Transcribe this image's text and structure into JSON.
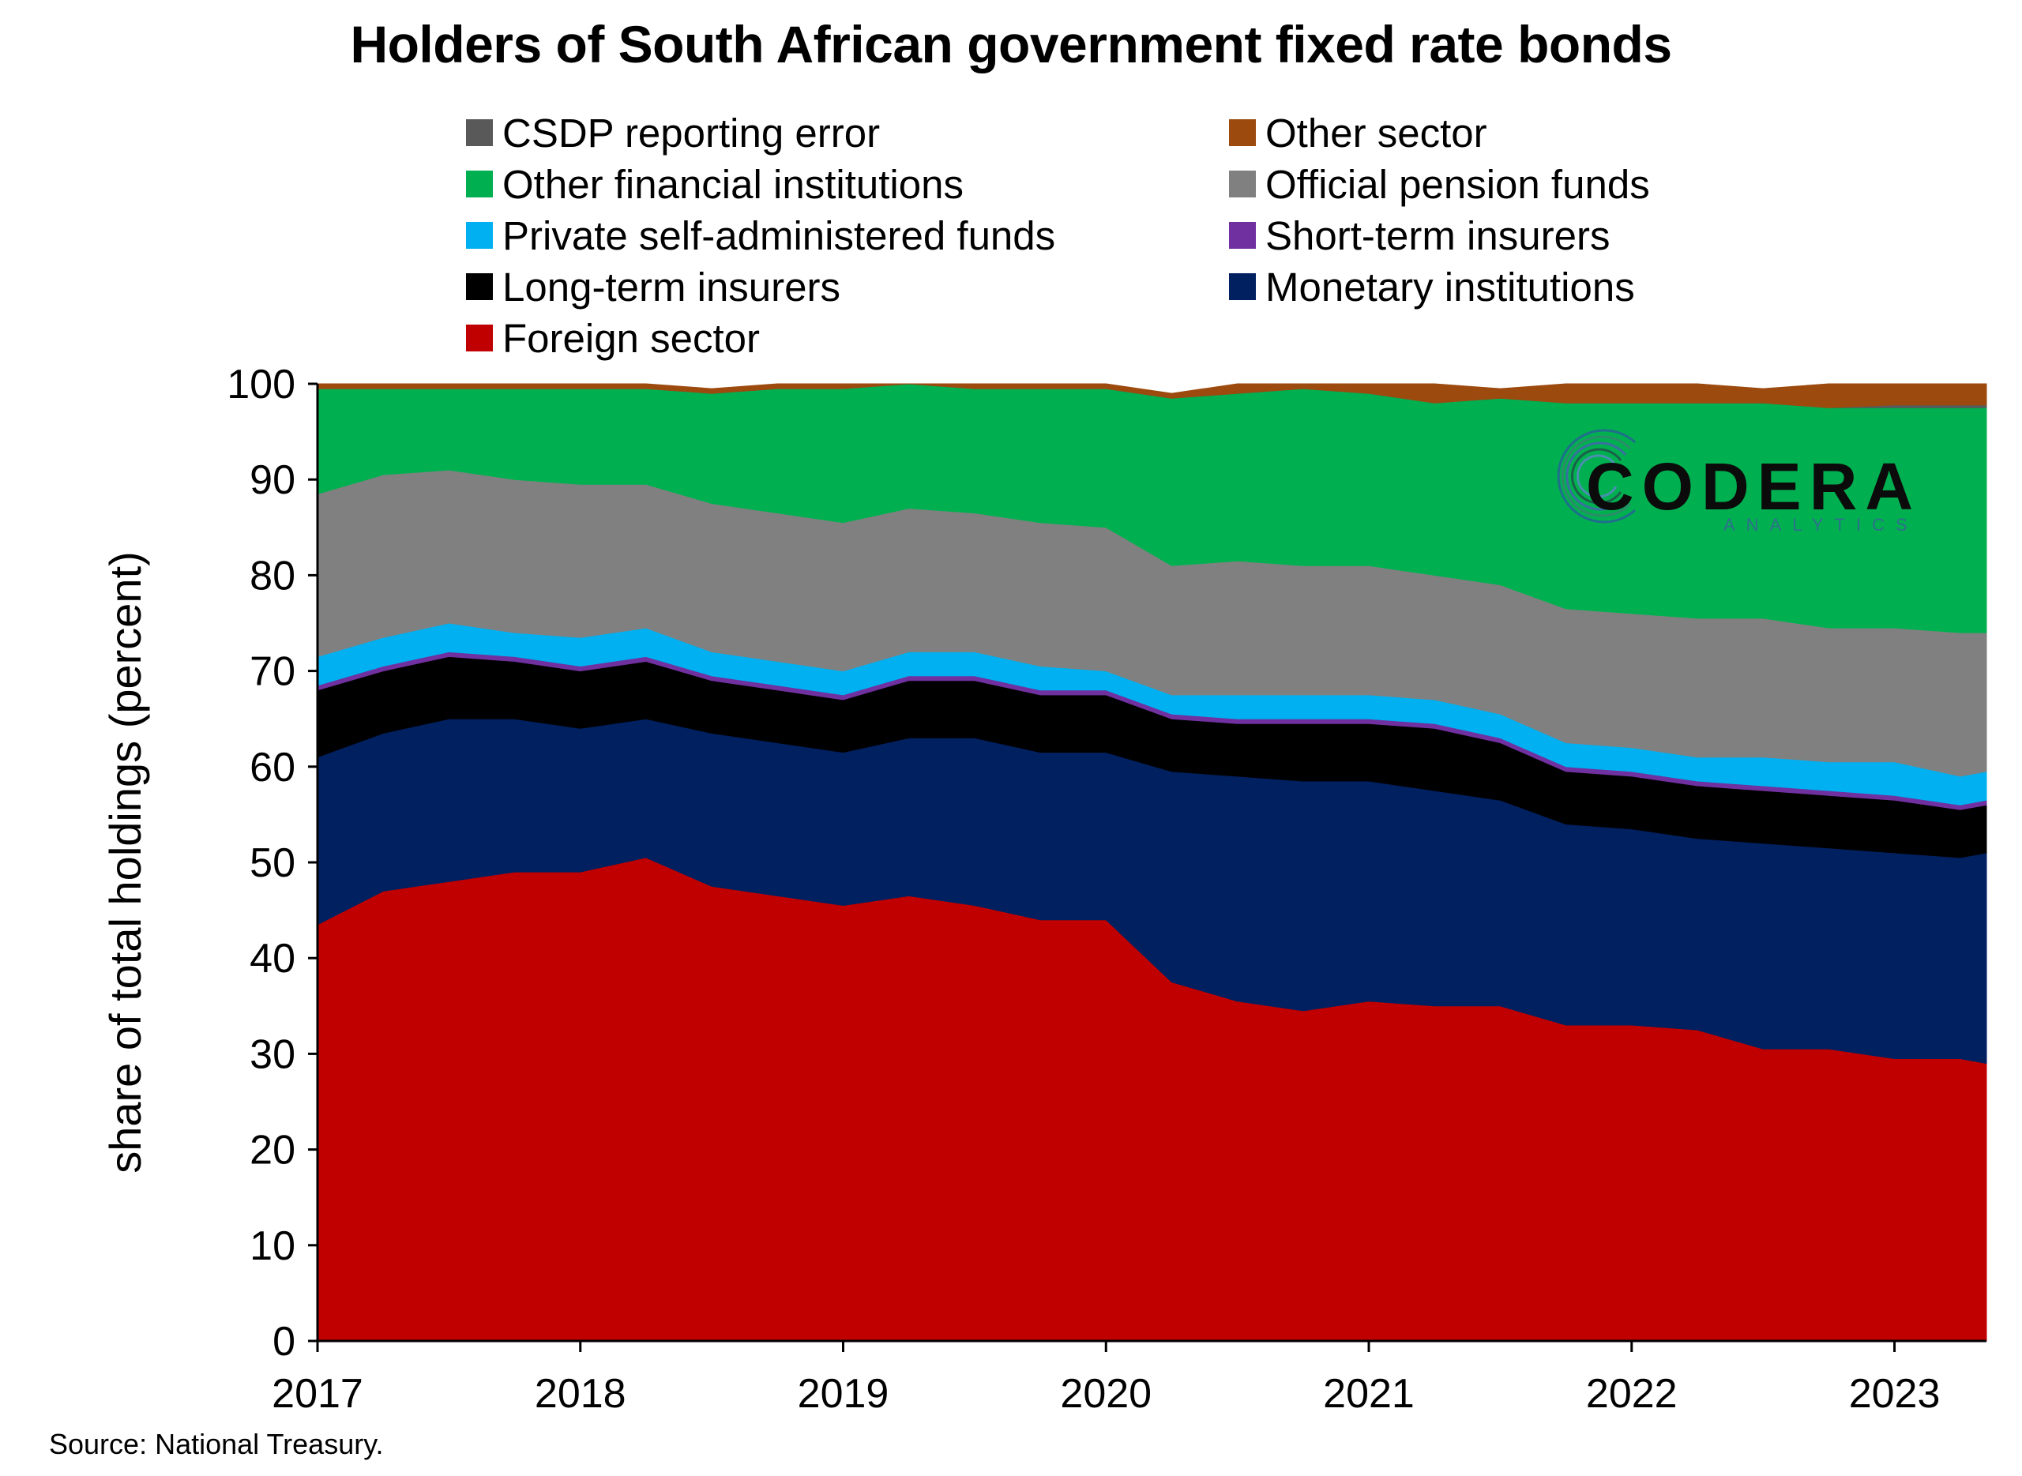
{
  "chart_data": {
    "type": "area",
    "stacked": true,
    "title": "Holders of South African government fixed rate bonds",
    "ylabel": "share of total holdings (percent)",
    "xlabel": "",
    "ylim": [
      0,
      100
    ],
    "yticks": [
      0,
      10,
      20,
      30,
      40,
      50,
      60,
      70,
      80,
      90,
      100
    ],
    "xticks": [
      "2017",
      "2018",
      "2019",
      "2020",
      "2021",
      "2022",
      "2023"
    ],
    "xlim": [
      2017.0,
      2023.35
    ],
    "grid": false,
    "legend_position": "top",
    "source": "Source: National Treasury.",
    "watermark": {
      "text": "CODERA",
      "subtext": "ANALYTICS"
    },
    "x": [
      2017.0,
      2017.25,
      2017.5,
      2017.75,
      2018.0,
      2018.25,
      2018.5,
      2018.75,
      2019.0,
      2019.25,
      2019.5,
      2019.75,
      2020.0,
      2020.25,
      2020.5,
      2020.75,
      2021.0,
      2021.25,
      2021.5,
      2021.75,
      2022.0,
      2022.25,
      2022.5,
      2022.75,
      2023.0,
      2023.25,
      2023.35
    ],
    "series": [
      {
        "name": "Foreign sector",
        "color": "#C00000",
        "values": [
          43.5,
          47,
          48,
          49,
          49,
          50.5,
          47.5,
          46.5,
          45.5,
          46.5,
          45.5,
          44,
          44,
          37.5,
          35.5,
          34.5,
          35.5,
          35,
          35,
          33,
          33,
          32.5,
          30.5,
          30.5,
          29.5,
          29.5,
          29
        ]
      },
      {
        "name": "Monetary institutions",
        "color": "#002060",
        "values": [
          17.5,
          16.5,
          17,
          16,
          15,
          14.5,
          16,
          16,
          16,
          16.5,
          17.5,
          17.5,
          17.5,
          22,
          23.5,
          24,
          23,
          22.5,
          21.5,
          21,
          20.5,
          20,
          21.5,
          21,
          21.5,
          21,
          22
        ]
      },
      {
        "name": "Long-term insurers",
        "color": "#000000",
        "values": [
          7,
          6.5,
          6.5,
          6,
          6,
          6,
          5.5,
          5.5,
          5.5,
          6,
          6,
          6,
          6,
          5.5,
          5.5,
          6,
          6,
          6.5,
          6,
          5.5,
          5.5,
          5.5,
          5.5,
          5.5,
          5.5,
          5,
          5
        ]
      },
      {
        "name": "Short-term insurers",
        "color": "#7030A0",
        "values": [
          0.5,
          0.5,
          0.5,
          0.5,
          0.5,
          0.5,
          0.5,
          0.5,
          0.5,
          0.5,
          0.5,
          0.5,
          0.5,
          0.5,
          0.5,
          0.5,
          0.5,
          0.5,
          0.5,
          0.5,
          0.5,
          0.5,
          0.5,
          0.5,
          0.5,
          0.5,
          0.5
        ]
      },
      {
        "name": "Private self-administered funds",
        "color": "#00B0F0",
        "values": [
          3,
          3,
          3,
          2.5,
          3,
          3,
          2.5,
          2.5,
          2.5,
          2.5,
          2.5,
          2.5,
          2,
          2,
          2.5,
          2.5,
          2.5,
          2.5,
          2.5,
          2.5,
          2.5,
          2.5,
          3,
          3,
          3.5,
          3,
          3
        ]
      },
      {
        "name": "Official pension funds",
        "color": "#808080",
        "values": [
          17,
          17,
          16,
          16,
          16,
          15,
          15.5,
          15.5,
          15.5,
          15,
          14.5,
          15,
          15,
          13.5,
          14,
          13.5,
          13.5,
          13,
          13.5,
          14,
          14,
          14.5,
          14.5,
          14,
          14,
          15,
          14.5
        ]
      },
      {
        "name": "Other financial institutions",
        "color": "#00B050",
        "values": [
          11,
          9,
          8.5,
          9.5,
          10,
          10,
          11.5,
          13,
          14,
          13,
          13,
          14,
          14.5,
          17.5,
          17.5,
          18.5,
          18,
          18,
          19.5,
          21.5,
          22,
          22.5,
          22.5,
          23,
          23,
          23.5,
          23.5
        ]
      },
      {
        "name": "CSDP reporting error",
        "color": "#595959",
        "values": [
          0,
          0,
          0,
          0,
          0,
          0,
          0,
          0,
          0,
          0,
          0,
          0,
          0,
          0,
          0,
          0,
          0,
          0,
          0,
          0,
          0,
          0,
          0,
          0,
          0.3,
          0.3,
          0.3
        ]
      },
      {
        "name": "Other sector",
        "color": "#9C4A0E",
        "values": [
          0.5,
          0.5,
          0.5,
          0.5,
          0.5,
          0.5,
          0.5,
          0.5,
          0.5,
          0.5,
          0.5,
          0.5,
          0.5,
          0.5,
          1,
          1,
          1,
          2,
          1,
          2,
          2,
          2,
          1.5,
          2.5,
          2.2,
          2.2,
          2.2
        ]
      }
    ],
    "legend": [
      {
        "label": "CSDP reporting error",
        "color": "#595959"
      },
      {
        "label": "Other sector",
        "color": "#9C4A0E"
      },
      {
        "label": "Other financial institutions",
        "color": "#00B050"
      },
      {
        "label": "Official pension funds",
        "color": "#808080"
      },
      {
        "label": "Private self-administered funds",
        "color": "#00B0F0"
      },
      {
        "label": "Short-term insurers",
        "color": "#7030A0"
      },
      {
        "label": "Long-term insurers",
        "color": "#000000"
      },
      {
        "label": "Monetary institutions",
        "color": "#002060"
      },
      {
        "label": "Foreign sector",
        "color": "#C00000"
      }
    ]
  }
}
